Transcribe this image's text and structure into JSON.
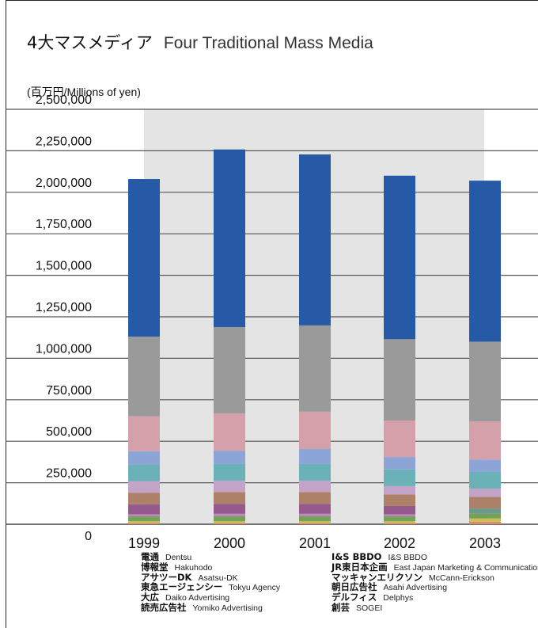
{
  "title_jp": "4大マスメディア",
  "title_en": "Four Traditional Mass Media",
  "unit_label": "(百万円/Millions of yen)",
  "chart_data": {
    "type": "bar",
    "stacked": true,
    "categories": [
      "1999",
      "2000",
      "2001",
      "2002",
      "2003"
    ],
    "ylim": [
      0,
      2500000
    ],
    "yticks": [
      "0",
      "250,000",
      "500,000",
      "750,000",
      "1,000,000",
      "1,250,000",
      "1,500,000",
      "1,750,000",
      "2,000,000",
      "2,250,000",
      "2,500,000"
    ],
    "grid": true,
    "legend_position": "bottom",
    "series": [
      {
        "name": "創芸 SOGEI",
        "color": "#d98b6d",
        "values": [
          8000,
          8000,
          8000,
          8000,
          15000
        ]
      },
      {
        "name": "デルフィス Delphys",
        "color": "#c8c14f",
        "values": [
          10000,
          10000,
          10000,
          10000,
          20000
        ]
      },
      {
        "name": "朝日広告社 Asahi Advertising",
        "color": "#74a05b",
        "values": [
          30000,
          30000,
          30000,
          30000,
          30000
        ]
      },
      {
        "name": "マッキャンエリクソン McCann-Erickson",
        "color": "#7d8fc0",
        "values": [
          0,
          0,
          0,
          0,
          0
        ]
      },
      {
        "name": "JR東日本企画 East Japan Marketing & Communications",
        "color": "#6b9a8c",
        "values": [
          0,
          0,
          0,
          0,
          30000
        ]
      },
      {
        "name": "I&S BBDO I&S BBDO",
        "color": "#b98bb0",
        "values": [
          12000,
          15000,
          15000,
          12000,
          0
        ]
      },
      {
        "name": "読売広告社 Yomiko Advertising",
        "color": "#96598d",
        "values": [
          60000,
          60000,
          60000,
          50000,
          0
        ]
      },
      {
        "name": "大広 Daiko Advertising",
        "color": "#ad8068",
        "values": [
          70000,
          70000,
          70000,
          70000,
          70000
        ]
      },
      {
        "name": "東急エージェンシー Tokyu Agency",
        "color": "#c4a3c9",
        "values": [
          70000,
          70000,
          70000,
          50000,
          50000
        ]
      },
      {
        "name": "アサツーDK Asatsu-DK",
        "color": "#6bb2b8",
        "values": [
          100000,
          100000,
          100000,
          100000,
          100000
        ]
      },
      {
        "name": "博報堂 Hakuhodo",
        "color": "#8da4d6",
        "values": [
          80000,
          80000,
          90000,
          75000,
          75000
        ]
      },
      {
        "name": "電通 Dentsu",
        "color": "#d4a0aa",
        "values": [
          210000,
          225000,
          225000,
          220000,
          230000
        ]
      },
      {
        "name": "_gray",
        "color": "#9a9a9a",
        "values": [
          480000,
          520000,
          520000,
          490000,
          480000
        ]
      },
      {
        "name": "_blue",
        "color": "#2659a6",
        "values": [
          950000,
          1070000,
          1030000,
          985000,
          970000
        ]
      }
    ]
  },
  "legend": {
    "left": [
      {
        "jp": "電通",
        "en": "Dentsu"
      },
      {
        "jp": "博報堂",
        "en": "Hakuhodo"
      },
      {
        "jp": "アサツーDK",
        "en": "Asatsu-DK"
      },
      {
        "jp": "東急エージェンシー",
        "en": "Tokyu Agency"
      },
      {
        "jp": "大広",
        "en": "Daiko Advertising"
      },
      {
        "jp": "読売広告社",
        "en": "Yomiko Advertising"
      }
    ],
    "right": [
      {
        "jp": "I&S BBDO",
        "en": "I&S BBDO"
      },
      {
        "jp": "JR東日本企画",
        "en": "East Japan Marketing & Communications"
      },
      {
        "jp": "マッキャンエリクソン",
        "en": "McCann-Erickson"
      },
      {
        "jp": "朝日広告社",
        "en": "Asahi Advertising"
      },
      {
        "jp": "デルフィス",
        "en": "Delphys"
      },
      {
        "jp": "創芸",
        "en": "SOGEI"
      }
    ]
  }
}
